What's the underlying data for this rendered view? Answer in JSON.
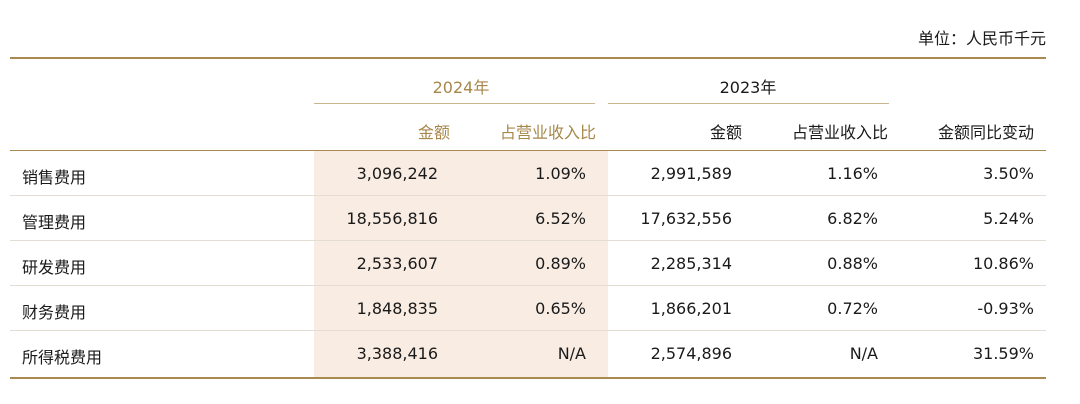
{
  "unit_label": "单位：人民币千元",
  "years": {
    "y2024": "2024年",
    "y2023": "2023年"
  },
  "headers": {
    "amount_2024": "金额",
    "ratio_2024": "占营业收入比",
    "amount_2023": "金额",
    "ratio_2023": "占营业收入比",
    "yoy_change": "金额同比变动"
  },
  "rows": [
    {
      "label": "销售费用",
      "amount_2024": "3,096,242",
      "ratio_2024": "1.09%",
      "amount_2023": "2,991,589",
      "ratio_2023": "1.16%",
      "yoy": "3.50%"
    },
    {
      "label": "管理费用",
      "amount_2024": "18,556,816",
      "ratio_2024": "6.52%",
      "amount_2023": "17,632,556",
      "ratio_2023": "6.82%",
      "yoy": "5.24%"
    },
    {
      "label": "研发费用",
      "amount_2024": "2,533,607",
      "ratio_2024": "0.89%",
      "amount_2023": "2,285,314",
      "ratio_2023": "0.88%",
      "yoy": "10.86%"
    },
    {
      "label": "财务费用",
      "amount_2024": "1,848,835",
      "ratio_2024": "0.65%",
      "amount_2023": "1,866,201",
      "ratio_2023": "0.72%",
      "yoy": "-0.93%"
    },
    {
      "label": "所得税费用",
      "amount_2024": "3,388,416",
      "ratio_2024": "N/A",
      "amount_2023": "2,574,896",
      "ratio_2023": "N/A",
      "yoy": "31.59%"
    }
  ],
  "colors": {
    "accent_gold": "#a7874a",
    "highlight_bg": "#f8ece3",
    "rule": "#a8894f"
  }
}
